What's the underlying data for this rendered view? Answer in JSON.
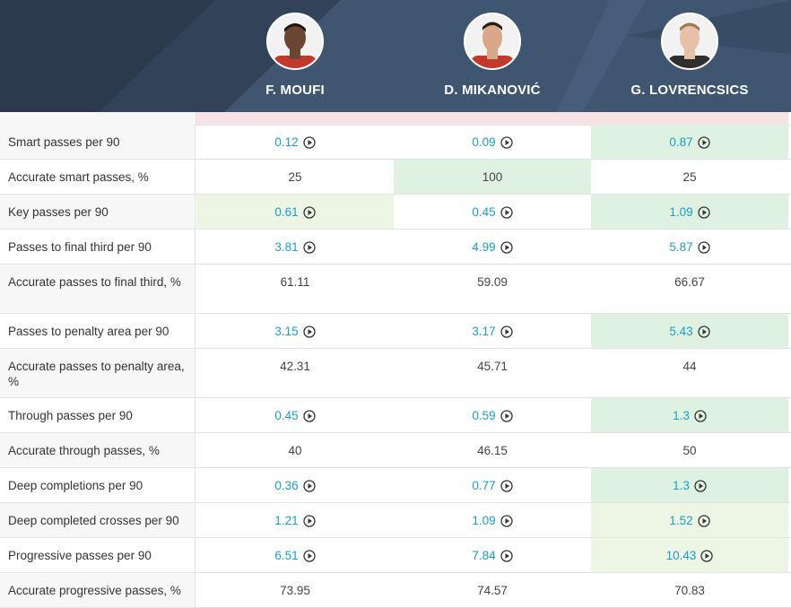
{
  "players": [
    {
      "name": "F. MOUFI",
      "skin": "#6b4533",
      "hair": "#1c1410",
      "shirt": "#c0392b"
    },
    {
      "name": "D. MIKANOVIĆ",
      "skin": "#d9a888",
      "hair": "#2a1d15",
      "shirt": "#c0392b"
    },
    {
      "name": "G. LOVRENCSICS",
      "skin": "#e6c1aa",
      "hair": "#a07a52",
      "shirt": "#2e2e2e"
    }
  ],
  "colors": {
    "header_bg": "#2b3a4d",
    "link_value": "#1a9ec9",
    "highlight_strong": "#dff1e1",
    "highlight_light": "#edf5e5"
  },
  "rows": [
    {
      "label": "Smart passes per 90",
      "cells": [
        {
          "value": "0.12",
          "link": true,
          "hl": ""
        },
        {
          "value": "0.09",
          "link": true,
          "hl": ""
        },
        {
          "value": "0.87",
          "link": true,
          "hl": "strong"
        }
      ]
    },
    {
      "label": "Accurate smart passes, %",
      "cells": [
        {
          "value": "25",
          "link": false,
          "hl": ""
        },
        {
          "value": "100",
          "link": false,
          "hl": "strong"
        },
        {
          "value": "25",
          "link": false,
          "hl": ""
        }
      ]
    },
    {
      "label": "Key passes per 90",
      "cells": [
        {
          "value": "0.61",
          "link": true,
          "hl": "light"
        },
        {
          "value": "0.45",
          "link": true,
          "hl": ""
        },
        {
          "value": "1.09",
          "link": true,
          "hl": "strong"
        }
      ]
    },
    {
      "label": "Passes to final third per 90",
      "cells": [
        {
          "value": "3.81",
          "link": true,
          "hl": ""
        },
        {
          "value": "4.99",
          "link": true,
          "hl": ""
        },
        {
          "value": "5.87",
          "link": true,
          "hl": ""
        }
      ]
    },
    {
      "label": "Accurate passes to final third, %",
      "tall": true,
      "cells": [
        {
          "value": "61.11",
          "link": false,
          "hl": ""
        },
        {
          "value": "59.09",
          "link": false,
          "hl": ""
        },
        {
          "value": "66.67",
          "link": false,
          "hl": ""
        }
      ]
    },
    {
      "label": "Passes to penalty area per 90",
      "cells": [
        {
          "value": "3.15",
          "link": true,
          "hl": ""
        },
        {
          "value": "3.17",
          "link": true,
          "hl": ""
        },
        {
          "value": "5.43",
          "link": true,
          "hl": "strong"
        }
      ]
    },
    {
      "label": "Accurate passes to penalty area, %",
      "tall": true,
      "cells": [
        {
          "value": "42.31",
          "link": false,
          "hl": ""
        },
        {
          "value": "45.71",
          "link": false,
          "hl": ""
        },
        {
          "value": "44",
          "link": false,
          "hl": ""
        }
      ]
    },
    {
      "label": "Through passes per 90",
      "cells": [
        {
          "value": "0.45",
          "link": true,
          "hl": ""
        },
        {
          "value": "0.59",
          "link": true,
          "hl": ""
        },
        {
          "value": "1.3",
          "link": true,
          "hl": "strong"
        }
      ]
    },
    {
      "label": "Accurate through passes, %",
      "cells": [
        {
          "value": "40",
          "link": false,
          "hl": ""
        },
        {
          "value": "46.15",
          "link": false,
          "hl": ""
        },
        {
          "value": "50",
          "link": false,
          "hl": ""
        }
      ]
    },
    {
      "label": "Deep completions per 90",
      "cells": [
        {
          "value": "0.36",
          "link": true,
          "hl": ""
        },
        {
          "value": "0.77",
          "link": true,
          "hl": ""
        },
        {
          "value": "1.3",
          "link": true,
          "hl": "strong"
        }
      ]
    },
    {
      "label": "Deep completed crosses per 90",
      "cells": [
        {
          "value": "1.21",
          "link": true,
          "hl": ""
        },
        {
          "value": "1.09",
          "link": true,
          "hl": ""
        },
        {
          "value": "1.52",
          "link": true,
          "hl": "light"
        }
      ]
    },
    {
      "label": "Progressive passes per 90",
      "cells": [
        {
          "value": "6.51",
          "link": true,
          "hl": ""
        },
        {
          "value": "7.84",
          "link": true,
          "hl": ""
        },
        {
          "value": "10.43",
          "link": true,
          "hl": "light"
        }
      ]
    },
    {
      "label": "Accurate progressive passes, %",
      "cells": [
        {
          "value": "73.95",
          "link": false,
          "hl": ""
        },
        {
          "value": "74.57",
          "link": false,
          "hl": ""
        },
        {
          "value": "70.83",
          "link": false,
          "hl": ""
        }
      ]
    }
  ]
}
